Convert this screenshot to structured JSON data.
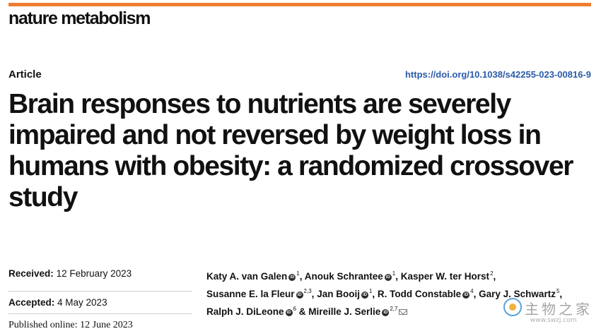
{
  "journal": "nature metabolism",
  "article_type": "Article",
  "doi": "https://doi.org/10.1038/s42255-023-00816-9",
  "title": "Brain responses to nutrients are severely impaired and not reversed by weight loss in humans with obesity: a randomized crossover study",
  "dates": {
    "received_label": "Received:",
    "received": "12 February 2023",
    "accepted_label": "Accepted:",
    "accepted": "4 May 2023",
    "published_label": "Published online:",
    "published": "12 June 2023"
  },
  "authors": [
    {
      "name": "Katy A. van Galen",
      "aff": "1",
      "orcid": true
    },
    {
      "name": "Anouk Schrantee",
      "aff": "1",
      "orcid": true
    },
    {
      "name": "Kasper W. ter Horst",
      "aff": "2",
      "orcid": false
    },
    {
      "name": "Susanne E. la Fleur",
      "aff": "2,3",
      "orcid": true
    },
    {
      "name": "Jan Booij",
      "aff": "1",
      "orcid": true
    },
    {
      "name": "R. Todd Constable",
      "aff": "4",
      "orcid": true
    },
    {
      "name": "Gary J. Schwartz",
      "aff": "5",
      "orcid": false
    },
    {
      "name": "Ralph J. DiLeone",
      "aff": "6",
      "orcid": true
    },
    {
      "name": "Mireille J. Serlie",
      "aff": "2,7",
      "orcid": true
    }
  ],
  "author_separator": ", ",
  "author_last_separator": " & ",
  "watermark": {
    "text": "主物之家",
    "url": "www.swzj.com"
  },
  "colors": {
    "accent_rule": "#ee7c31",
    "doi_link": "#2a5aa8"
  }
}
